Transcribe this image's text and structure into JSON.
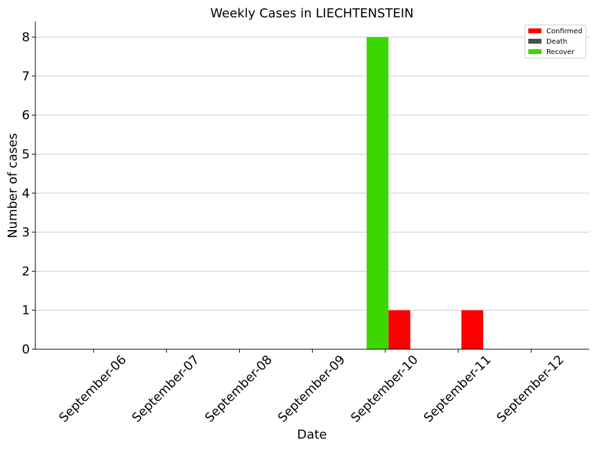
{
  "chart_data": {
    "type": "bar",
    "title": "Weekly Cases in LIECHTENSTEIN",
    "xlabel": "Date",
    "ylabel": "Number of cases",
    "categories": [
      "September-06",
      "September-07",
      "September-08",
      "September-09",
      "September-10",
      "September-11",
      "September-12"
    ],
    "series": [
      {
        "name": "Confirmed",
        "color": "#ff0000",
        "values": [
          0,
          0,
          0,
          0,
          1,
          1,
          0
        ]
      },
      {
        "name": "Death",
        "color": "#4d4d4d",
        "values": [
          0,
          0,
          0,
          0,
          0,
          0,
          0
        ]
      },
      {
        "name": "Recover",
        "color": "#3cd700",
        "values": [
          0,
          0,
          0,
          0,
          8,
          0,
          0
        ]
      }
    ],
    "ylim": [
      0,
      8.4
    ],
    "yticks": [
      0,
      1,
      2,
      3,
      4,
      5,
      6,
      7,
      8
    ],
    "grid": "horizontal",
    "legend_position": "top-right"
  }
}
